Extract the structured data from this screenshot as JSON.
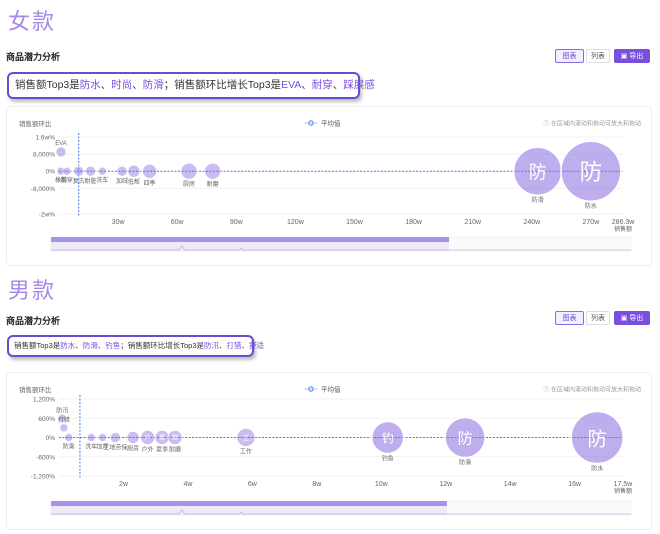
{
  "sections": [
    {
      "heading": "女款",
      "panel_title": "商品潜力分析",
      "buttons": {
        "chart": "图表",
        "list": "列表",
        "export": "导出"
      },
      "summary": {
        "p1": "销售额Top3是",
        "top_sales": [
          "防水",
          "时尚",
          "防滑"
        ],
        "p2": "；销售额环比增长Top3是",
        "top_growth": [
          "EVA",
          "耐穿",
          "踩屎感"
        ]
      },
      "chart_ylabel": "销售额环比",
      "legend": "平均值",
      "hint": "在区域内滚动和拖动可放大和拖动",
      "xlabel": "销售额",
      "accent": "#8b6be0"
    },
    {
      "heading": "男款",
      "panel_title": "商品潜力分析",
      "buttons": {
        "chart": "图表",
        "list": "列表",
        "export": "导出"
      },
      "summary": {
        "p1": "销售额Top3是",
        "top_sales": [
          "防水",
          "防滑",
          "钓鱼"
        ],
        "p2": "；销售额环比增长Top3是",
        "top_growth": [
          "防汛",
          "打猎",
          "舒适"
        ]
      },
      "chart_ylabel": "销售额环比",
      "legend": "平均值",
      "hint": "在区域内滚动和拖动可放大和拖动",
      "xlabel": "销售额",
      "accent": "#8b6be0"
    }
  ],
  "chart_data": [
    {
      "type": "scatter",
      "ylabel": "销售额环比",
      "xlabel": "销售额",
      "x_ticks": [
        "30w",
        "60w",
        "90w",
        "120w",
        "150w",
        "180w",
        "210w",
        "240w",
        "270w",
        "286.3w"
      ],
      "y_ticks": [
        "1.6w%",
        "8,000%",
        "0%",
        "-8,000%",
        "-2w%"
      ],
      "xlim": [
        0,
        286.3
      ],
      "ylim": [
        -20000,
        16000
      ],
      "average_line": {
        "x": 10,
        "y": 0
      },
      "points": [
        {
          "label": "EVA",
          "x": 1,
          "y": 9000,
          "r": 5
        },
        {
          "label": "橡胶",
          "x": 1,
          "y": 0,
          "r": 4
        },
        {
          "label": "耐穿",
          "x": 4,
          "y": 0,
          "r": 4
        },
        {
          "label": "复古",
          "x": 10,
          "y": 0,
          "r": 5
        },
        {
          "label": "耐脏",
          "x": 16,
          "y": 0,
          "r": 5
        },
        {
          "label": "洗车",
          "x": 22,
          "y": 0,
          "r": 4
        },
        {
          "label": "加绒",
          "x": 32,
          "y": 0,
          "r": 5
        },
        {
          "label": "低帮",
          "x": 38,
          "y": 0,
          "r": 6
        },
        {
          "label": "四季",
          "x": 46,
          "y": 0,
          "r": 7
        },
        {
          "label": "厨房",
          "x": 66,
          "y": 0,
          "r": 8
        },
        {
          "label": "耐磨",
          "x": 78,
          "y": 0,
          "r": 8
        },
        {
          "label": "防滑",
          "x": 243,
          "y": 0,
          "r": 24,
          "icon": "防"
        },
        {
          "label": "防水",
          "x": 270,
          "y": 0,
          "r": 30,
          "icon": "防"
        }
      ]
    },
    {
      "type": "scatter",
      "ylabel": "销售额环比",
      "xlabel": "销售额",
      "x_ticks": [
        "2w",
        "4w",
        "6w",
        "8w",
        "10w",
        "12w",
        "14w",
        "16w",
        "17.5w"
      ],
      "y_ticks": [
        "1,200%",
        "600%",
        "0%",
        "-600%",
        "-1,200%"
      ],
      "xlim": [
        0,
        17.5
      ],
      "ylim": [
        -1200,
        1200
      ],
      "average_line": {
        "x": 0.65,
        "y": 0
      },
      "points": [
        {
          "label": "防汛",
          "x": 0.1,
          "y": 600,
          "r": 4
        },
        {
          "label": "打猎",
          "x": 0.15,
          "y": 300,
          "r": 4
        },
        {
          "label": "防臭",
          "x": 0.3,
          "y": 0,
          "r": 4
        },
        {
          "label": "洗车",
          "x": 1.0,
          "y": 0,
          "r": 4
        },
        {
          "label": "加厚",
          "x": 1.35,
          "y": 0,
          "r": 4
        },
        {
          "label": "工地劳保",
          "x": 1.75,
          "y": 0,
          "r": 5
        },
        {
          "label": "厨房",
          "x": 2.3,
          "y": 0,
          "r": 6
        },
        {
          "label": "户外",
          "x": 2.75,
          "y": 0,
          "r": 7,
          "icon": "户"
        },
        {
          "label": "夏季",
          "x": 3.2,
          "y": 0,
          "r": 7,
          "icon": "夏"
        },
        {
          "label": "耐磨",
          "x": 3.6,
          "y": 0,
          "r": 7,
          "icon": "耐"
        },
        {
          "label": "工作",
          "x": 5.8,
          "y": 0,
          "r": 9,
          "icon": "工"
        },
        {
          "label": "钓鱼",
          "x": 10.2,
          "y": 0,
          "r": 16,
          "icon": "钓"
        },
        {
          "label": "防滑",
          "x": 12.6,
          "y": 0,
          "r": 20,
          "icon": "防"
        },
        {
          "label": "防水",
          "x": 16.7,
          "y": 0,
          "r": 26,
          "icon": "防"
        }
      ]
    }
  ]
}
